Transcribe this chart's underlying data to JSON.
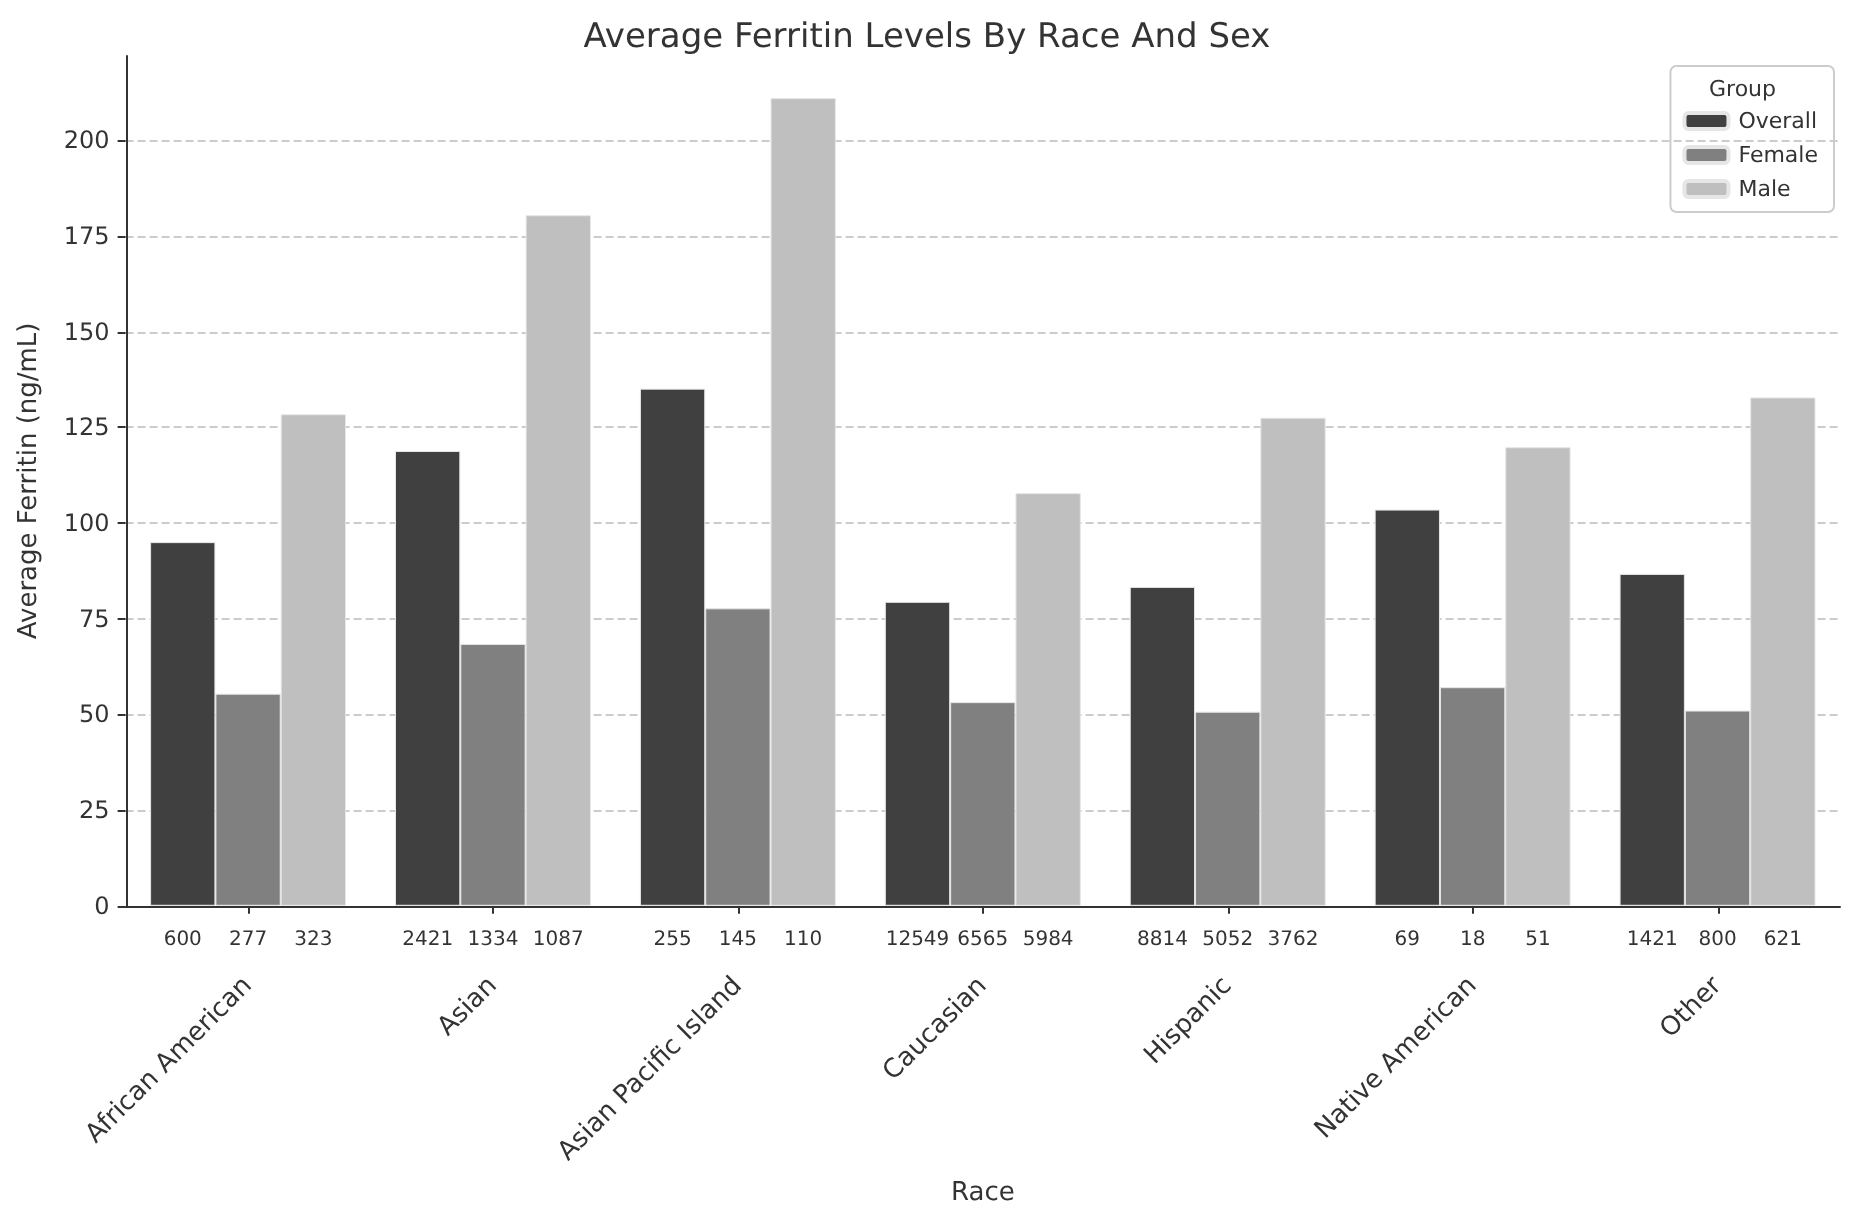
{
  "chart_data": {
    "type": "bar",
    "title": "Average Ferritin Levels By Race And Sex",
    "xlabel": "Race",
    "ylabel": "Average Ferritin (ng/mL)",
    "legend_title": "Group",
    "categories": [
      "African American",
      "Asian",
      "Asian Pacific Island",
      "Caucasian",
      "Hispanic",
      "Native American",
      "Other"
    ],
    "series": [
      {
        "name": "Overall",
        "color": "#404040",
        "values": [
          95,
          118.8,
          135.1,
          79.4,
          83.3,
          103.5,
          86.7
        ]
      },
      {
        "name": "Female",
        "color": "#808080",
        "values": [
          55.4,
          68.4,
          77.7,
          53.2,
          50.7,
          57.1,
          51
        ]
      },
      {
        "name": "Male",
        "color": "#bfbfbf",
        "values": [
          128.4,
          180.4,
          211,
          107.8,
          127.5,
          119.8,
          132.8
        ]
      }
    ],
    "annotations": [
      "600",
      "277",
      "323",
      "2421",
      "1334",
      "1087",
      "255",
      "145",
      "110",
      "12549",
      "6565",
      "5984",
      "8814",
      "5052",
      "3762",
      "69",
      "18",
      "51",
      "1421",
      "800",
      "621"
    ],
    "ylim": [
      0,
      222
    ],
    "yticks": [
      0,
      25,
      50,
      75,
      100,
      125,
      150,
      175,
      200
    ],
    "grid": "y",
    "legend": "top right"
  }
}
